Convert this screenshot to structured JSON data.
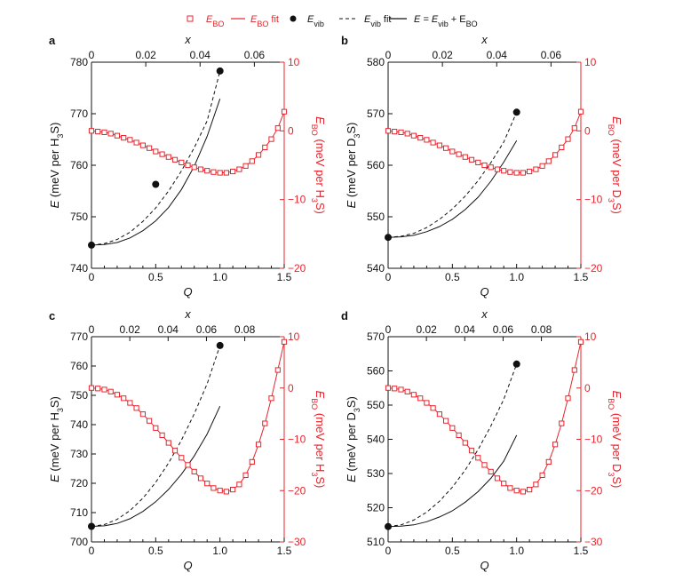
{
  "colors": {
    "black": "#111111",
    "red": "#e8242c"
  },
  "legend": [
    {
      "symbol": "open-square-red",
      "text": "E",
      "sub": "BO",
      "after": ""
    },
    {
      "symbol": "line-red",
      "text": "E",
      "sub": "BO",
      "after": " fit"
    },
    {
      "symbol": "filled-circle-black",
      "text": "E",
      "sub": "vib",
      "after": ""
    },
    {
      "symbol": "dashed-black",
      "text": "E",
      "sub": "vib",
      "after": " fit"
    },
    {
      "symbol": "line-black",
      "text": "E = E",
      "sub": "vib",
      "after": " + E",
      "sub2": "BO"
    }
  ],
  "chart_data": [
    {
      "panel": "a",
      "type": "line",
      "xlabel": "Q",
      "x2label": "x",
      "ylabel_left": {
        "pre": "E (meV per H",
        "sub": "3",
        "post": "S)"
      },
      "ylabel_right": {
        "sym": "E",
        "symsub": "BO",
        "pre": " (meV per H",
        "sub": "3",
        "post": "S)"
      },
      "xlim": [
        0,
        1.5
      ],
      "xticks": [
        0,
        0.5,
        1.0,
        1.5
      ],
      "xtick_labels": [
        "0",
        "0.5",
        "1.0",
        "1.5"
      ],
      "x2ticks": [
        0,
        0.02,
        0.04,
        0.06
      ],
      "x2tick_labels": [
        "0",
        "0.02",
        "0.04",
        "0.06"
      ],
      "x2_per_Q": 0.04733,
      "ylim_left": [
        740,
        780
      ],
      "yticks_left": [
        740,
        750,
        760,
        770,
        780
      ],
      "ytick_labels_left": [
        "740",
        "750",
        "760",
        "770",
        "780"
      ],
      "ylim_right": [
        -20,
        10
      ],
      "yticks_right": [
        -20,
        -10,
        0,
        10
      ],
      "ytick_labels_right": [
        "−20",
        "−10",
        "0",
        "10"
      ],
      "E_BO_points": {
        "Q": [
          0,
          0.05,
          0.1,
          0.15,
          0.2,
          0.25,
          0.3,
          0.35,
          0.4,
          0.45,
          0.5,
          0.55,
          0.6,
          0.65,
          0.7,
          0.75,
          0.8,
          0.85,
          0.9,
          0.95,
          1.0,
          1.05,
          1.1,
          1.15,
          1.2,
          1.25,
          1.3,
          1.35,
          1.4,
          1.45,
          1.5
        ],
        "E": [
          0.0,
          -0.1,
          -0.2,
          -0.4,
          -0.7,
          -1.0,
          -1.3,
          -1.7,
          -2.1,
          -2.5,
          -3.0,
          -3.4,
          -3.8,
          -4.2,
          -4.6,
          -5.0,
          -5.3,
          -5.6,
          -5.8,
          -6.0,
          -6.1,
          -6.1,
          -5.9,
          -5.6,
          -5.1,
          -4.4,
          -3.5,
          -2.4,
          -1.2,
          0.4,
          2.8
        ]
      },
      "E_vib_points": {
        "Q": [
          0,
          0.5,
          1.0
        ],
        "E": [
          744.5,
          756.3,
          778.3
        ]
      },
      "E_vib_fit": {
        "Q": [
          0,
          0.1,
          0.2,
          0.3,
          0.4,
          0.5,
          0.6,
          0.7,
          0.8,
          0.9,
          1.0
        ],
        "E": [
          744.5,
          744.8,
          745.6,
          747.0,
          749.1,
          751.7,
          755.0,
          758.9,
          763.4,
          768.6,
          778.3
        ]
      },
      "E_total": {
        "Q": [
          0,
          0.1,
          0.2,
          0.3,
          0.4,
          0.5,
          0.6,
          0.7,
          0.8,
          0.9,
          1.0
        ],
        "E": [
          744.5,
          744.6,
          745.0,
          745.9,
          747.3,
          749.2,
          751.8,
          755.3,
          759.8,
          765.6,
          772.9
        ]
      }
    },
    {
      "panel": "b",
      "type": "line",
      "xlabel": "Q",
      "x2label": "x",
      "ylabel_left": {
        "pre": "E (meV per D",
        "sub": "3",
        "post": "S)"
      },
      "ylabel_right": {
        "sym": "E",
        "symsub": "BO",
        "pre": " (meV per D",
        "sub": "3",
        "post": "S)"
      },
      "xlim": [
        0,
        1.5
      ],
      "xticks": [
        0,
        0.5,
        1.0,
        1.5
      ],
      "xtick_labels": [
        "0",
        "0.5",
        "1.0",
        "1.5"
      ],
      "x2ticks": [
        0,
        0.02,
        0.04,
        0.06
      ],
      "x2tick_labels": [
        "0",
        "0.02",
        "0.04",
        "0.06"
      ],
      "x2_per_Q": 0.04733,
      "ylim_left": [
        540,
        580
      ],
      "yticks_left": [
        540,
        550,
        560,
        570,
        580
      ],
      "ytick_labels_left": [
        "540",
        "550",
        "560",
        "570",
        "580"
      ],
      "ylim_right": [
        -20,
        10
      ],
      "yticks_right": [
        -20,
        -10,
        0,
        10
      ],
      "ytick_labels_right": [
        "−20",
        "−10",
        "0",
        "10"
      ],
      "E_BO_points": {
        "Q": [
          0,
          0.05,
          0.1,
          0.15,
          0.2,
          0.25,
          0.3,
          0.35,
          0.4,
          0.45,
          0.5,
          0.55,
          0.6,
          0.65,
          0.7,
          0.75,
          0.8,
          0.85,
          0.9,
          0.95,
          1.0,
          1.05,
          1.1,
          1.15,
          1.2,
          1.25,
          1.3,
          1.35,
          1.4,
          1.45,
          1.5
        ],
        "E": [
          0.0,
          -0.1,
          -0.2,
          -0.4,
          -0.7,
          -1.0,
          -1.3,
          -1.7,
          -2.1,
          -2.5,
          -3.0,
          -3.4,
          -3.8,
          -4.2,
          -4.6,
          -5.0,
          -5.3,
          -5.6,
          -5.8,
          -6.0,
          -6.1,
          -6.1,
          -5.9,
          -5.6,
          -5.1,
          -4.4,
          -3.5,
          -2.4,
          -1.2,
          0.4,
          2.8
        ]
      },
      "E_vib_points": {
        "Q": [
          0,
          1.0
        ],
        "E": [
          546.0,
          570.3
        ]
      },
      "E_vib_fit": {
        "Q": [
          0,
          0.1,
          0.2,
          0.3,
          0.4,
          0.5,
          0.6,
          0.7,
          0.8,
          0.9,
          1.0
        ],
        "E": [
          546.0,
          546.2,
          546.8,
          547.9,
          549.5,
          551.5,
          554.0,
          557.0,
          560.5,
          564.5,
          570.3
        ]
      },
      "E_total": {
        "Q": [
          0,
          0.1,
          0.2,
          0.3,
          0.4,
          0.5,
          0.6,
          0.7,
          0.8,
          0.9,
          1.0
        ],
        "E": [
          546.0,
          546.1,
          546.4,
          547.1,
          548.1,
          549.5,
          551.4,
          553.8,
          556.9,
          560.6,
          564.8
        ]
      }
    },
    {
      "panel": "c",
      "type": "line",
      "xlabel": "Q",
      "x2label": "x",
      "ylabel_left": {
        "pre": "E (meV per H",
        "sub": "3",
        "post": "S)"
      },
      "ylabel_right": {
        "sym": "E",
        "symsub": "BO",
        "pre": " (meV per H",
        "sub": "3",
        "post": "S)"
      },
      "xlim": [
        0,
        1.5
      ],
      "xticks": [
        0,
        0.5,
        1.0,
        1.5
      ],
      "xtick_labels": [
        "0",
        "0.5",
        "1.0",
        "1.5"
      ],
      "x2ticks": [
        0,
        0.02,
        0.04,
        0.06,
        0.08
      ],
      "x2tick_labels": [
        "0",
        "0.02",
        "0.04",
        "0.06",
        "0.08"
      ],
      "x2_per_Q": 0.06706,
      "ylim_left": [
        700,
        770
      ],
      "yticks_left": [
        700,
        710,
        720,
        730,
        740,
        750,
        760,
        770
      ],
      "ytick_labels_left": [
        "700",
        "710",
        "720",
        "730",
        "740",
        "750",
        "760",
        "770"
      ],
      "ylim_right": [
        -30,
        10
      ],
      "yticks_right": [
        -30,
        -20,
        -10,
        0,
        10
      ],
      "ytick_labels_right": [
        "−30",
        "−20",
        "−10",
        "0",
        "10"
      ],
      "E_BO_points": {
        "Q": [
          0,
          0.05,
          0.1,
          0.15,
          0.2,
          0.25,
          0.3,
          0.35,
          0.4,
          0.45,
          0.5,
          0.55,
          0.6,
          0.65,
          0.7,
          0.75,
          0.8,
          0.85,
          0.9,
          0.95,
          1.0,
          1.05,
          1.1,
          1.15,
          1.2,
          1.25,
          1.3,
          1.35,
          1.4,
          1.45,
          1.5
        ],
        "E": [
          0.0,
          -0.1,
          -0.3,
          -0.7,
          -1.3,
          -2.0,
          -2.9,
          -3.9,
          -5.1,
          -6.4,
          -7.8,
          -9.2,
          -10.7,
          -12.2,
          -13.6,
          -15.0,
          -16.3,
          -17.6,
          -18.6,
          -19.5,
          -20.0,
          -20.2,
          -19.8,
          -18.8,
          -17.0,
          -14.4,
          -11.0,
          -6.9,
          -2.0,
          3.5,
          9.0
        ]
      },
      "E_vib_points": {
        "Q": [
          0,
          1.0
        ],
        "E": [
          705.3,
          767.0
        ]
      },
      "E_vib_fit": {
        "Q": [
          0,
          0.1,
          0.2,
          0.3,
          0.4,
          0.5,
          0.6,
          0.7,
          0.8,
          0.9,
          1.0
        ],
        "E": [
          705.3,
          705.9,
          707.7,
          710.7,
          714.9,
          720.3,
          726.9,
          734.7,
          743.7,
          753.9,
          767.0
        ]
      },
      "E_total": {
        "Q": [
          0,
          0.1,
          0.2,
          0.3,
          0.4,
          0.5,
          0.6,
          0.7,
          0.8,
          0.9,
          1.0
        ],
        "E": [
          705.3,
          705.5,
          706.3,
          707.9,
          710.4,
          713.7,
          717.9,
          723.1,
          729.3,
          736.8,
          746.3
        ]
      }
    },
    {
      "panel": "d",
      "type": "line",
      "xlabel": "Q",
      "x2label": "x",
      "ylabel_left": {
        "pre": "E (meV per D",
        "sub": "3",
        "post": "S)"
      },
      "ylabel_right": {
        "sym": "E",
        "symsub": "BO",
        "pre": " (meV per D",
        "sub": "3",
        "post": "S)"
      },
      "xlim": [
        0,
        1.5
      ],
      "xticks": [
        0,
        0.5,
        1.0,
        1.5
      ],
      "xtick_labels": [
        "0",
        "0.5",
        "1.0",
        "1.5"
      ],
      "x2ticks": [
        0,
        0.02,
        0.04,
        0.06,
        0.08
      ],
      "x2tick_labels": [
        "0",
        "0.02",
        "0.04",
        "0.06",
        "0.08"
      ],
      "x2_per_Q": 0.06706,
      "ylim_left": [
        510,
        570
      ],
      "yticks_left": [
        510,
        520,
        530,
        540,
        550,
        560,
        570
      ],
      "ytick_labels_left": [
        "510",
        "520",
        "530",
        "540",
        "550",
        "560",
        "570"
      ],
      "ylim_right": [
        -30,
        10
      ],
      "yticks_right": [
        -30,
        -20,
        -10,
        0,
        10
      ],
      "ytick_labels_right": [
        "−30",
        "−20",
        "−10",
        "0",
        "10"
      ],
      "E_BO_points": {
        "Q": [
          0,
          0.05,
          0.1,
          0.15,
          0.2,
          0.25,
          0.3,
          0.35,
          0.4,
          0.45,
          0.5,
          0.55,
          0.6,
          0.65,
          0.7,
          0.75,
          0.8,
          0.85,
          0.9,
          0.95,
          1.0,
          1.05,
          1.1,
          1.15,
          1.2,
          1.25,
          1.3,
          1.35,
          1.4,
          1.45,
          1.5
        ],
        "E": [
          0.0,
          -0.1,
          -0.3,
          -0.7,
          -1.3,
          -2.0,
          -2.9,
          -3.9,
          -5.1,
          -6.4,
          -7.8,
          -9.2,
          -10.7,
          -12.2,
          -13.6,
          -15.0,
          -16.3,
          -17.6,
          -18.6,
          -19.5,
          -20.0,
          -20.2,
          -19.8,
          -18.8,
          -17.0,
          -14.4,
          -11.0,
          -6.9,
          -2.0,
          3.5,
          9.0
        ]
      },
      "E_vib_points": {
        "Q": [
          0,
          1.0
        ],
        "E": [
          514.5,
          562.0
        ]
      },
      "E_vib_fit": {
        "Q": [
          0,
          0.1,
          0.2,
          0.3,
          0.4,
          0.5,
          0.6,
          0.7,
          0.8,
          0.9,
          1.0
        ],
        "E": [
          514.5,
          515.0,
          516.4,
          518.7,
          521.9,
          526.0,
          531.0,
          537.0,
          543.9,
          551.7,
          562.0
        ]
      },
      "E_total": {
        "Q": [
          0,
          0.1,
          0.2,
          0.3,
          0.4,
          0.5,
          0.6,
          0.7,
          0.8,
          0.9,
          1.0
        ],
        "E": [
          514.5,
          514.6,
          515.0,
          515.9,
          517.3,
          519.1,
          521.6,
          524.7,
          528.6,
          533.6,
          541.2
        ]
      }
    }
  ]
}
